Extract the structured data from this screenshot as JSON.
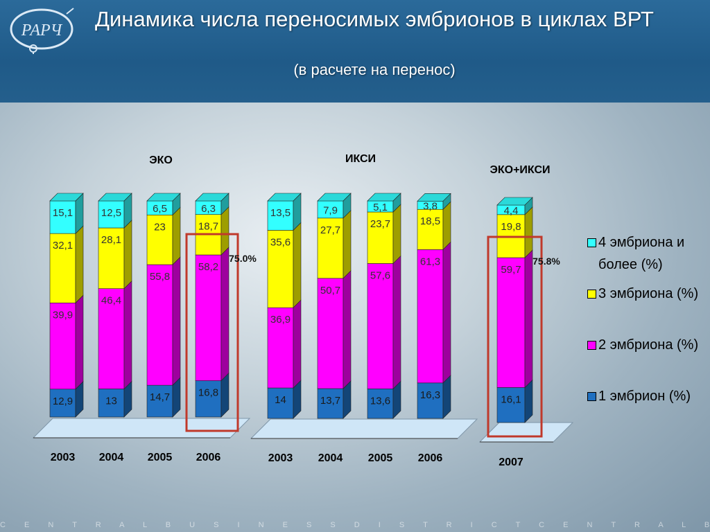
{
  "header": {
    "title": "Динамика числа переносимых эмбрионов в циклах ВРТ",
    "subtitle": "(в расчете на перенос)",
    "logo_text": "РАРЧ"
  },
  "footer_text": "C E N T R A L B U S I N E S S D I S T R I C T C E N T R A L B U S I N E S S D I S T R I C T C E N T R A",
  "colors": {
    "one": "#1f6fc0",
    "two": "#ff00ff",
    "three": "#ffff00",
    "four": "#33ffff",
    "highlight": "#c0392b"
  },
  "chart_data": {
    "type": "bar",
    "stacked": true,
    "series_names": [
      "1 эмбрион (%)",
      "2 эмбриона (%)",
      "3 эмбриона (%)",
      "4 эмбриона и более (%)"
    ],
    "legend_order": [
      "4 эмбриона и более (%)",
      "3 эмбриона (%)",
      "2 эмбриона (%)",
      "1 эмбрион (%)"
    ],
    "groups": [
      {
        "title": "ЭКО",
        "categories": [
          "2003",
          "2004",
          "2005",
          "2006"
        ],
        "one": [
          12.9,
          13,
          14.7,
          16.8
        ],
        "two": [
          39.9,
          46.4,
          55.8,
          58.2
        ],
        "three": [
          32.1,
          28.1,
          23,
          18.7
        ],
        "four": [
          15.1,
          12.5,
          6.5,
          6.3
        ],
        "labels": {
          "one": [
            "12,9",
            "13",
            "14,7",
            "16,8"
          ],
          "two": [
            "39,9",
            "46,4",
            "55,8",
            "58,2"
          ],
          "three": [
            "32,1",
            "28,1",
            "23",
            "18,7"
          ],
          "four": [
            "15,1",
            "12,5",
            "6,5",
            "6,3"
          ]
        },
        "highlight_index": 3,
        "highlight_label": "75.0%"
      },
      {
        "title": "ИКСИ",
        "categories": [
          "2003",
          "2004",
          "2005",
          "2006"
        ],
        "one": [
          14,
          13.7,
          13.6,
          16.3
        ],
        "two": [
          36.9,
          50.7,
          57.6,
          61.3
        ],
        "three": [
          35.6,
          27.7,
          23.7,
          18.5
        ],
        "four": [
          13.5,
          7.9,
          5.1,
          3.8
        ],
        "labels": {
          "one": [
            "14",
            "13,7",
            "13,6",
            "16,3"
          ],
          "two": [
            "36,9",
            "50,7",
            "57,6",
            "61,3"
          ],
          "three": [
            "35,6",
            "27,7",
            "23,7",
            "18,5"
          ],
          "four": [
            "13,5",
            "7,9",
            "5,1",
            "3,8"
          ]
        }
      },
      {
        "title": "ЭКО+ИКСИ",
        "categories": [
          "2007"
        ],
        "one": [
          16.1
        ],
        "two": [
          59.7
        ],
        "three": [
          19.8
        ],
        "four": [
          4.4
        ],
        "labels": {
          "one": [
            "16,1"
          ],
          "two": [
            "59,7"
          ],
          "three": [
            "19,8"
          ],
          "four": [
            "4,4"
          ]
        },
        "highlight_index": 0,
        "highlight_label": "75.8%"
      }
    ]
  }
}
